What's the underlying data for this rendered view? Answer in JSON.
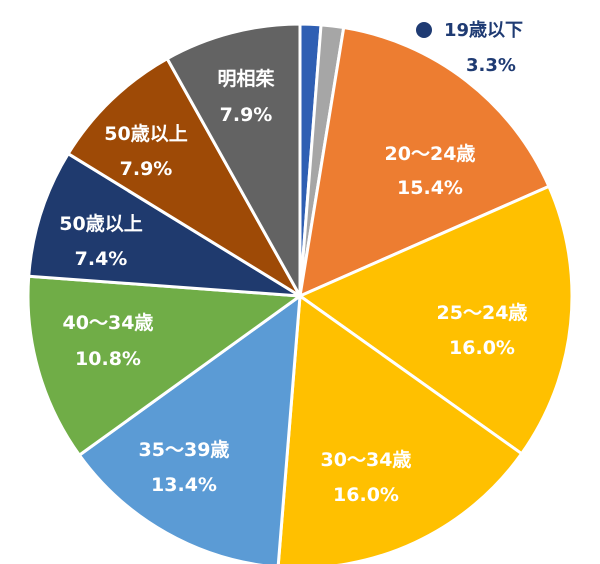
{
  "chart_data": {
    "type": "pie",
    "title": "",
    "start": "12 o'clock, clockwise",
    "slices": [
      {
        "label": "",
        "value": 1.2,
        "color": "#2f5fb3"
      },
      {
        "label": "",
        "value": 1.3,
        "color": "#a6a6a6"
      },
      {
        "label": "20～24歳",
        "value": 15.4,
        "color": "#ed7d31"
      },
      {
        "label": "25～24歳",
        "value": 16.0,
        "color": "#ffc000"
      },
      {
        "label": "30～34歳",
        "value": 16.0,
        "color": "#ffc000"
      },
      {
        "label": "35～39歳",
        "value": 13.4,
        "color": "#5b9bd5"
      },
      {
        "label": "40～34歳",
        "value": 10.8,
        "color": "#70ad47"
      },
      {
        "label": "50歳以上",
        "value": 7.4,
        "color": "#1f3a6e"
      },
      {
        "label": "50歳以上",
        "value": 7.9,
        "color": "#9e4a06"
      },
      {
        "label": "明相茱",
        "value": 7.9,
        "color": "#636363"
      }
    ],
    "labels": [
      {
        "name": "20～24歳",
        "pct": "15.4%"
      },
      {
        "name": "25～24歳",
        "pct": "16.0%"
      },
      {
        "name": "30～34歳",
        "pct": "16.0%"
      },
      {
        "name": "35～39歳",
        "pct": "13.4%"
      },
      {
        "name": "40～34歳",
        "pct": "10.8%"
      },
      {
        "name": "50歳以上",
        "pct": "7.4%"
      },
      {
        "name": "50歳以上",
        "pct": "7.9%"
      },
      {
        "name": "明相茱",
        "pct": "7.9%"
      }
    ],
    "legend": {
      "name": "19歳以下",
      "pct": "3.3%",
      "color": "#1f3b73",
      "placement": "top-right"
    }
  }
}
